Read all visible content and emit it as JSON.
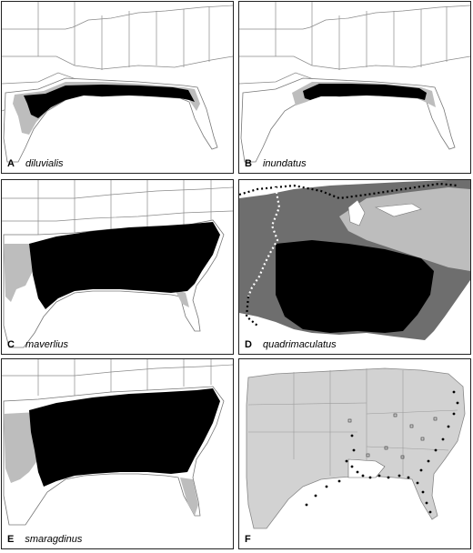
{
  "panels": [
    {
      "letter": "A",
      "species": "diluvialis"
    },
    {
      "letter": "B",
      "species": "inundatus"
    },
    {
      "letter": "C",
      "species": "maverlius"
    },
    {
      "letter": "D",
      "species": "quadrimaculatus"
    },
    {
      "letter": "E",
      "species": "smaragdinus"
    },
    {
      "letter": "F",
      "species": ""
    }
  ],
  "colors": {
    "range_core": "#000000",
    "range_marginal": "#bdbdbd",
    "range_mid": "#6e6e6e",
    "land": "#ffffff",
    "states_sampled": "#d2d2d2",
    "boundary": "#8a8a8a"
  }
}
